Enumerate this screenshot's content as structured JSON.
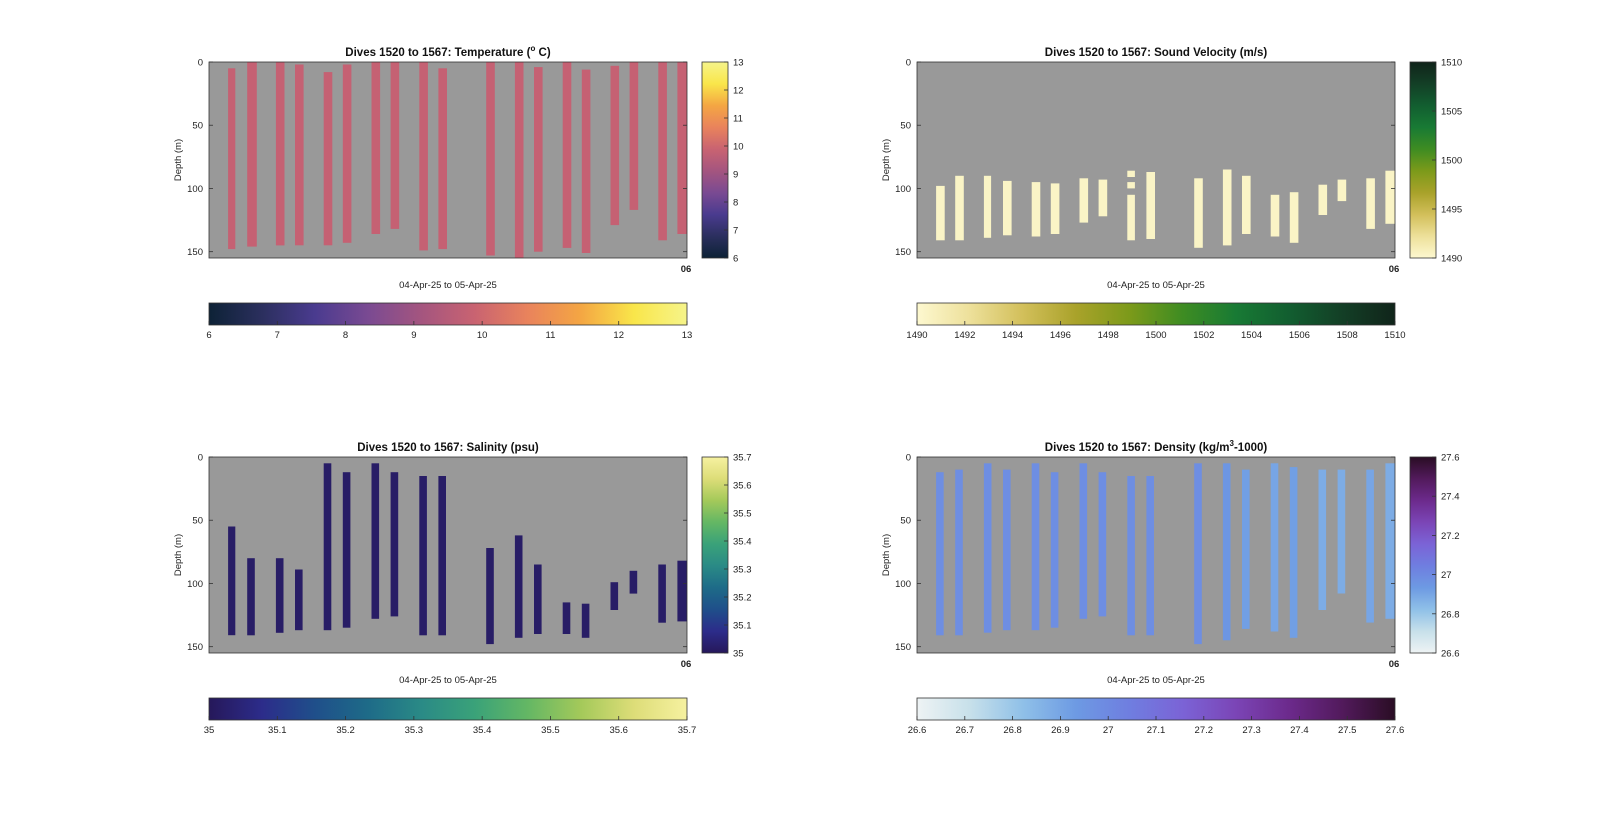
{
  "figure": {
    "background": "#ffffff",
    "plot_bg": "#999999"
  },
  "chart_data": [
    {
      "id": "temperature",
      "type": "heatmap",
      "title_pre": "Dives 1520 to 1567: Temperature (",
      "title_sup": "o",
      "title_post": " C)",
      "xlabel": "04-Apr-25 to 05-Apr-25",
      "ylabel": "Depth (m)",
      "x_tick_labels": [
        "06"
      ],
      "ylim": [
        0,
        155
      ],
      "y_ticks": [
        "0",
        "50",
        "100",
        "150"
      ],
      "colormap": [
        "#0d2236",
        "#2b2f5e",
        "#4a3b8f",
        "#7a4a92",
        "#a4557f",
        "#c96371",
        "#e9835c",
        "#f4a643",
        "#f9e64a",
        "#f6f48a"
      ],
      "clim": [
        6,
        13
      ],
      "right_colorbar_ticks": [
        "6",
        "7",
        "8",
        "9",
        "10",
        "11",
        "12",
        "13"
      ],
      "bottom_colorbar_ticks": [
        "6",
        "7",
        "8",
        "9",
        "10",
        "11",
        "12",
        "13"
      ],
      "casts": [
        {
          "start": 0.04,
          "end": 0.055,
          "top": 5,
          "bottom": 148,
          "value": 9.8
        },
        {
          "start": 0.08,
          "end": 0.1,
          "top": 0,
          "bottom": 146,
          "value": 9.8
        },
        {
          "start": 0.14,
          "end": 0.158,
          "top": 0,
          "bottom": 145,
          "value": 9.8
        },
        {
          "start": 0.18,
          "end": 0.198,
          "top": 2,
          "bottom": 145,
          "value": 9.8
        },
        {
          "start": 0.24,
          "end": 0.258,
          "top": 8,
          "bottom": 145,
          "value": 9.8
        },
        {
          "start": 0.28,
          "end": 0.298,
          "top": 2,
          "bottom": 143,
          "value": 9.8
        },
        {
          "start": 0.34,
          "end": 0.358,
          "top": 0,
          "bottom": 136,
          "value": 9.8
        },
        {
          "start": 0.38,
          "end": 0.398,
          "top": 0,
          "bottom": 132,
          "value": 9.8
        },
        {
          "start": 0.44,
          "end": 0.458,
          "top": 0,
          "bottom": 149,
          "value": 9.8
        },
        {
          "start": 0.48,
          "end": 0.498,
          "top": 5,
          "bottom": 148,
          "value": 9.8
        },
        {
          "start": 0.58,
          "end": 0.598,
          "top": 0,
          "bottom": 153,
          "value": 9.8
        },
        {
          "start": 0.64,
          "end": 0.658,
          "top": 0,
          "bottom": 155,
          "value": 9.8
        },
        {
          "start": 0.68,
          "end": 0.698,
          "top": 4,
          "bottom": 150,
          "value": 9.8
        },
        {
          "start": 0.74,
          "end": 0.758,
          "top": 0,
          "bottom": 147,
          "value": 9.8
        },
        {
          "start": 0.78,
          "end": 0.798,
          "top": 6,
          "bottom": 151,
          "value": 9.8
        },
        {
          "start": 0.84,
          "end": 0.858,
          "top": 3,
          "bottom": 129,
          "value": 9.8
        },
        {
          "start": 0.88,
          "end": 0.898,
          "top": 0,
          "bottom": 117,
          "value": 9.8
        },
        {
          "start": 0.94,
          "end": 0.958,
          "top": 0,
          "bottom": 141,
          "value": 9.8
        },
        {
          "start": 0.98,
          "end": 1.0,
          "top": 0,
          "bottom": 136,
          "value": 9.8
        }
      ]
    },
    {
      "id": "sound-velocity",
      "type": "heatmap",
      "title_pre": "Dives 1520 to 1567: Sound Velocity (m/s)",
      "title_sup": "",
      "title_post": "",
      "xlabel": "04-Apr-25 to 05-Apr-25",
      "ylabel": "Depth (m)",
      "x_tick_labels": [
        "06"
      ],
      "ylim": [
        0,
        155
      ],
      "y_ticks": [
        "0",
        "50",
        "100",
        "150"
      ],
      "colormap": [
        "#fdf8d0",
        "#ede09a",
        "#d2bf5a",
        "#a9a22a",
        "#7c9a1a",
        "#3e8c22",
        "#187a34",
        "#125e30",
        "#133f26",
        "#10241a"
      ],
      "clim": [
        1490,
        1510
      ],
      "right_colorbar_ticks": [
        "1490",
        "1495",
        "1500",
        "1505",
        "1510"
      ],
      "bottom_colorbar_ticks": [
        "1490",
        "1492",
        "1494",
        "1496",
        "1498",
        "1500",
        "1502",
        "1504",
        "1506",
        "1508",
        "1510"
      ],
      "casts": [
        {
          "start": 0.04,
          "end": 0.058,
          "top": 98,
          "bottom": 141,
          "value": 1490.4
        },
        {
          "start": 0.08,
          "end": 0.098,
          "top": 90,
          "bottom": 141,
          "value": 1490.4
        },
        {
          "start": 0.14,
          "end": 0.155,
          "top": 90,
          "bottom": 139,
          "value": 1490.4
        },
        {
          "start": 0.18,
          "end": 0.198,
          "top": 94,
          "bottom": 137,
          "value": 1490.4
        },
        {
          "start": 0.24,
          "end": 0.258,
          "top": 95,
          "bottom": 138,
          "value": 1490.4
        },
        {
          "start": 0.28,
          "end": 0.298,
          "top": 96,
          "bottom": 136,
          "value": 1490.4
        },
        {
          "start": 0.34,
          "end": 0.358,
          "top": 92,
          "bottom": 127,
          "value": 1490.4
        },
        {
          "start": 0.38,
          "end": 0.398,
          "top": 93,
          "bottom": 122,
          "value": 1490.4
        },
        {
          "start": 0.44,
          "end": 0.456,
          "top": 105,
          "bottom": 141,
          "value": 1490.4
        },
        {
          "start": 0.44,
          "end": 0.456,
          "top": 86,
          "bottom": 91,
          "value": 1490.4
        },
        {
          "start": 0.44,
          "end": 0.456,
          "top": 95,
          "bottom": 100,
          "value": 1490.4
        },
        {
          "start": 0.48,
          "end": 0.498,
          "top": 87,
          "bottom": 140,
          "value": 1490.4
        },
        {
          "start": 0.58,
          "end": 0.598,
          "top": 92,
          "bottom": 147,
          "value": 1490.4
        },
        {
          "start": 0.64,
          "end": 0.658,
          "top": 85,
          "bottom": 145,
          "value": 1490.4
        },
        {
          "start": 0.68,
          "end": 0.698,
          "top": 90,
          "bottom": 136,
          "value": 1490.4
        },
        {
          "start": 0.74,
          "end": 0.758,
          "top": 105,
          "bottom": 138,
          "value": 1490.4
        },
        {
          "start": 0.78,
          "end": 0.798,
          "top": 103,
          "bottom": 143,
          "value": 1490.4
        },
        {
          "start": 0.84,
          "end": 0.858,
          "top": 97,
          "bottom": 121,
          "value": 1490.4
        },
        {
          "start": 0.88,
          "end": 0.898,
          "top": 93,
          "bottom": 110,
          "value": 1490.4
        },
        {
          "start": 0.94,
          "end": 0.958,
          "top": 92,
          "bottom": 132,
          "value": 1490.4
        },
        {
          "start": 0.98,
          "end": 1.0,
          "top": 86,
          "bottom": 128,
          "value": 1490.4
        }
      ]
    },
    {
      "id": "salinity",
      "type": "heatmap",
      "title_pre": "Dives 1520 to 1567: Salinity (psu)",
      "title_sup": "",
      "title_post": "",
      "xlabel": "04-Apr-25 to 05-Apr-25",
      "ylabel": "Depth (m)",
      "x_tick_labels": [
        "06"
      ],
      "ylim": [
        0,
        155
      ],
      "y_ticks": [
        "0",
        "50",
        "100",
        "150"
      ],
      "colormap": [
        "#26185a",
        "#2c2c8a",
        "#1f4f8a",
        "#1e6b88",
        "#2a8a86",
        "#3aa279",
        "#64b764",
        "#a4c95a",
        "#dddd78",
        "#f6f1a0"
      ],
      "clim": [
        35,
        35.7
      ],
      "right_colorbar_ticks": [
        "35",
        "35.1",
        "35.2",
        "35.3",
        "35.4",
        "35.5",
        "35.6",
        "35.7"
      ],
      "bottom_colorbar_ticks": [
        "35",
        "35.1",
        "35.2",
        "35.3",
        "35.4",
        "35.5",
        "35.6",
        "35.7"
      ],
      "casts": [
        {
          "start": 0.04,
          "end": 0.055,
          "top": 55,
          "bottom": 141,
          "value": 35.02
        },
        {
          "start": 0.08,
          "end": 0.096,
          "top": 80,
          "bottom": 141,
          "value": 35.02
        },
        {
          "start": 0.14,
          "end": 0.156,
          "top": 80,
          "bottom": 139,
          "value": 35.02
        },
        {
          "start": 0.18,
          "end": 0.196,
          "top": 89,
          "bottom": 137,
          "value": 35.02
        },
        {
          "start": 0.24,
          "end": 0.256,
          "top": 5,
          "bottom": 137,
          "value": 35.02
        },
        {
          "start": 0.28,
          "end": 0.296,
          "top": 12,
          "bottom": 135,
          "value": 35.02
        },
        {
          "start": 0.34,
          "end": 0.356,
          "top": 5,
          "bottom": 128,
          "value": 35.02
        },
        {
          "start": 0.38,
          "end": 0.396,
          "top": 12,
          "bottom": 126,
          "value": 35.02
        },
        {
          "start": 0.44,
          "end": 0.456,
          "top": 15,
          "bottom": 141,
          "value": 35.02
        },
        {
          "start": 0.48,
          "end": 0.496,
          "top": 15,
          "bottom": 141,
          "value": 35.02
        },
        {
          "start": 0.58,
          "end": 0.596,
          "top": 72,
          "bottom": 148,
          "value": 35.02
        },
        {
          "start": 0.64,
          "end": 0.656,
          "top": 62,
          "bottom": 143,
          "value": 35.02
        },
        {
          "start": 0.68,
          "end": 0.696,
          "top": 85,
          "bottom": 140,
          "value": 35.02
        },
        {
          "start": 0.74,
          "end": 0.756,
          "top": 115,
          "bottom": 140,
          "value": 35.02
        },
        {
          "start": 0.78,
          "end": 0.796,
          "top": 116,
          "bottom": 143,
          "value": 35.02
        },
        {
          "start": 0.84,
          "end": 0.856,
          "top": 99,
          "bottom": 121,
          "value": 35.02
        },
        {
          "start": 0.88,
          "end": 0.896,
          "top": 90,
          "bottom": 108,
          "value": 35.02
        },
        {
          "start": 0.94,
          "end": 0.956,
          "top": 85,
          "bottom": 131,
          "value": 35.02
        },
        {
          "start": 0.98,
          "end": 1.0,
          "top": 82,
          "bottom": 130,
          "value": 35.02
        }
      ]
    },
    {
      "id": "density",
      "type": "heatmap",
      "title_pre": "Dives 1520 to 1567: Density (kg/m",
      "title_sup": "3",
      "title_post": "-1000)",
      "xlabel": "04-Apr-25 to 05-Apr-25",
      "ylabel": "Depth (m)",
      "x_tick_labels": [
        "06"
      ],
      "ylim": [
        0,
        155
      ],
      "y_ticks": [
        "0",
        "50",
        "100",
        "150"
      ],
      "colormap": [
        "#eef3f4",
        "#c7e0ea",
        "#8fc0e8",
        "#6d9ae3",
        "#6f7ee0",
        "#7b63d6",
        "#7b45b6",
        "#6c2a8c",
        "#521a5c",
        "#2a0d24"
      ],
      "clim": [
        26.6,
        27.6
      ],
      "right_colorbar_ticks": [
        "26.6",
        "26.8",
        "27",
        "27.2",
        "27.4",
        "27.6"
      ],
      "bottom_colorbar_ticks": [
        "26.6",
        "26.7",
        "26.8",
        "26.9",
        "27",
        "27.1",
        "27.2",
        "27.3",
        "27.4",
        "27.5",
        "27.6"
      ],
      "casts": [
        {
          "start": 0.04,
          "end": 0.056,
          "top": 12,
          "bottom": 141,
          "value": 26.98
        },
        {
          "start": 0.08,
          "end": 0.096,
          "top": 10,
          "bottom": 141,
          "value": 26.98
        },
        {
          "start": 0.14,
          "end": 0.156,
          "top": 5,
          "bottom": 139,
          "value": 26.98
        },
        {
          "start": 0.18,
          "end": 0.196,
          "top": 10,
          "bottom": 137,
          "value": 26.98
        },
        {
          "start": 0.24,
          "end": 0.256,
          "top": 5,
          "bottom": 137,
          "value": 26.98
        },
        {
          "start": 0.28,
          "end": 0.296,
          "top": 12,
          "bottom": 135,
          "value": 26.98
        },
        {
          "start": 0.34,
          "end": 0.356,
          "top": 5,
          "bottom": 128,
          "value": 26.98
        },
        {
          "start": 0.38,
          "end": 0.396,
          "top": 12,
          "bottom": 126,
          "value": 26.98
        },
        {
          "start": 0.44,
          "end": 0.456,
          "top": 15,
          "bottom": 141,
          "value": 26.98
        },
        {
          "start": 0.48,
          "end": 0.496,
          "top": 15,
          "bottom": 141,
          "value": 26.98
        },
        {
          "start": 0.58,
          "end": 0.596,
          "top": 5,
          "bottom": 148,
          "value": 26.98
        },
        {
          "start": 0.64,
          "end": 0.656,
          "top": 5,
          "bottom": 145,
          "value": 26.95
        },
        {
          "start": 0.68,
          "end": 0.696,
          "top": 10,
          "bottom": 136,
          "value": 26.92
        },
        {
          "start": 0.74,
          "end": 0.756,
          "top": 5,
          "bottom": 138,
          "value": 26.9
        },
        {
          "start": 0.78,
          "end": 0.796,
          "top": 8,
          "bottom": 143,
          "value": 26.92
        },
        {
          "start": 0.84,
          "end": 0.856,
          "top": 10,
          "bottom": 121,
          "value": 26.88
        },
        {
          "start": 0.88,
          "end": 0.896,
          "top": 10,
          "bottom": 108,
          "value": 26.88
        },
        {
          "start": 0.94,
          "end": 0.956,
          "top": 10,
          "bottom": 131,
          "value": 26.9
        },
        {
          "start": 0.98,
          "end": 1.0,
          "top": 5,
          "bottom": 128,
          "value": 26.88
        }
      ]
    }
  ]
}
